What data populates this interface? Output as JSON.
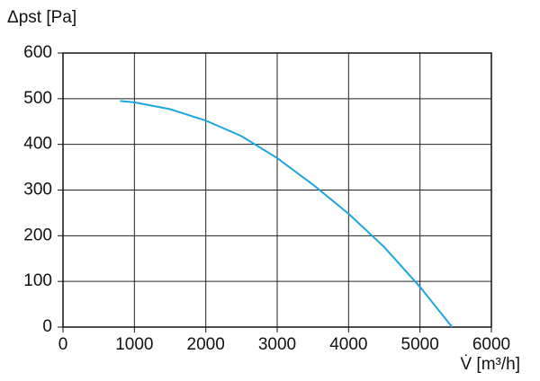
{
  "chart_data": {
    "type": "line",
    "y_label": "Δpst [Pa]",
    "x_label": "V̇ [m³/h]",
    "x": [
      800,
      1000,
      1500,
      2000,
      2500,
      3000,
      3500,
      4000,
      4500,
      5000,
      5450
    ],
    "values": [
      495,
      492,
      477,
      452,
      418,
      370,
      312,
      248,
      175,
      88,
      0
    ],
    "color": "#1ea6df",
    "xlim": [
      0,
      6000
    ],
    "xticks": [
      0,
      1000,
      2000,
      3000,
      4000,
      5000,
      6000
    ],
    "ylim": [
      0,
      600
    ],
    "yticks": [
      0,
      100,
      200,
      300,
      400,
      500,
      600
    ],
    "grid": true
  }
}
